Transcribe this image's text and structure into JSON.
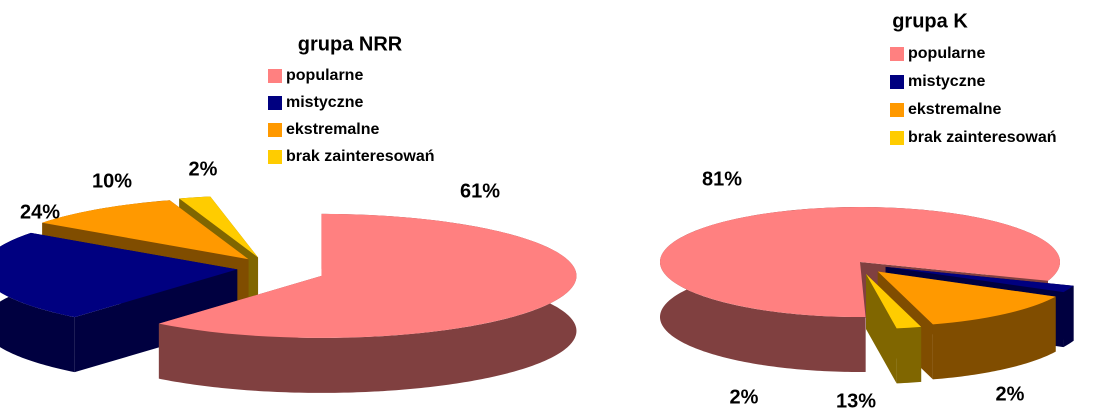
{
  "chart_data": [
    {
      "type": "pie",
      "title": "grupa NRR",
      "categories": [
        "popularne",
        "mistyczne",
        "ekstremalne",
        "brak zainteresowań"
      ],
      "values": [
        61,
        24,
        10,
        2
      ],
      "value_labels": [
        "61%",
        "24%",
        "10%",
        "2%"
      ],
      "colors": [
        "#ff8080",
        "#000080",
        "#ff9900",
        "#ffcc00"
      ]
    },
    {
      "type": "pie",
      "title": "grupa  K",
      "categories": [
        "popularne",
        "mistyczne",
        "ekstremalne",
        "brak zainteresowań"
      ],
      "values": [
        81,
        2,
        13,
        2
      ],
      "value_labels": [
        "81%",
        "2%",
        "13%",
        "2%"
      ],
      "colors": [
        "#ff8080",
        "#000080",
        "#ff9900",
        "#ffcc00"
      ]
    }
  ]
}
